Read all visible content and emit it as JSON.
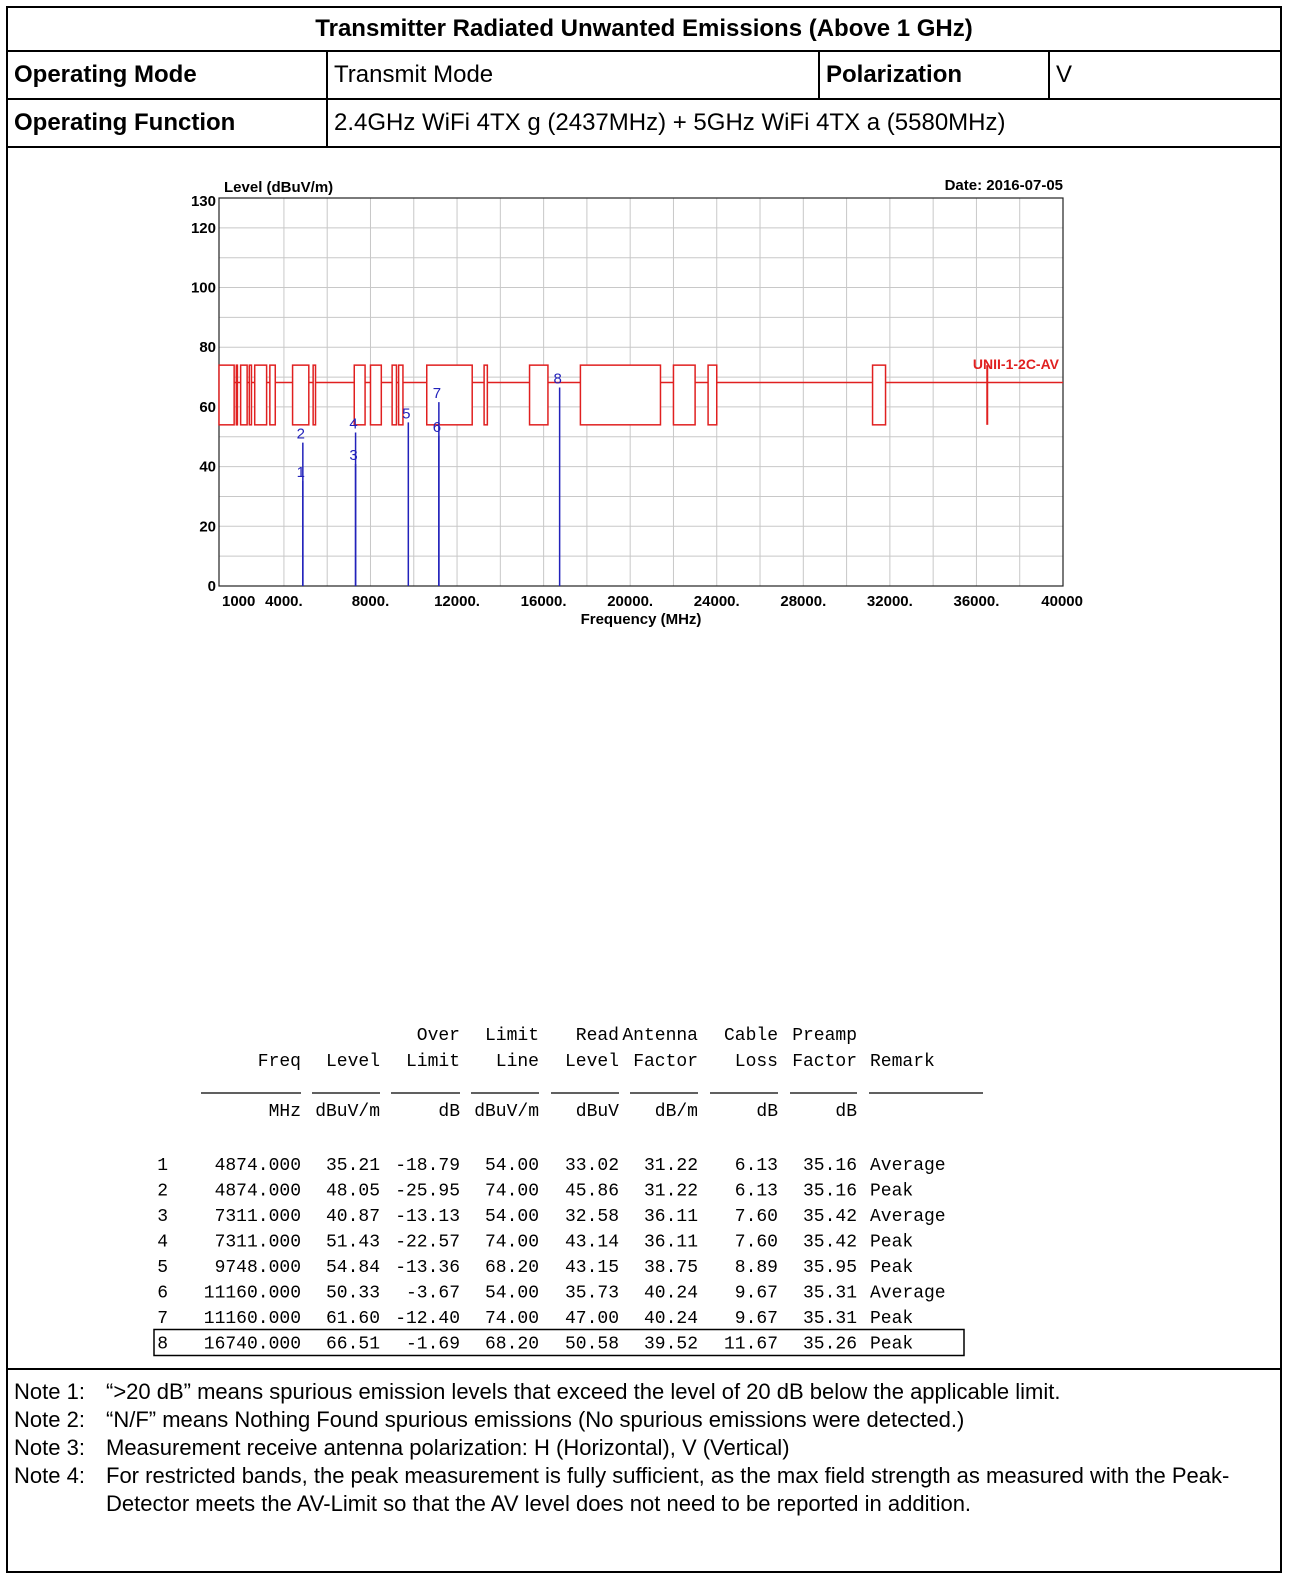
{
  "header": {
    "title": "Transmitter Radiated Unwanted Emissions (Above 1 GHz)",
    "operating_mode_label": "Operating Mode",
    "operating_mode_value": "Transmit Mode",
    "polarization_label": "Polarization",
    "polarization_value": "V",
    "operating_function_label": "Operating Function",
    "operating_function_value": "2.4GHz WiFi 4TX g (2437MHz) + 5GHz WiFi 4TX a (5580MHz)"
  },
  "chart_data": {
    "type": "line",
    "ylabel": "Level (dBuV/m)",
    "xlabel": "Frequency (MHz)",
    "date": "Date: 2016-07-05",
    "limit_label": "UNII-1-2C-AV",
    "xlim": [
      1000,
      40000
    ],
    "ylim": [
      0,
      130
    ],
    "x_ticks": [
      {
        "v": 1000,
        "label": "1000"
      },
      {
        "v": 4000,
        "label": "4000."
      },
      {
        "v": 8000,
        "label": "8000."
      },
      {
        "v": 12000,
        "label": "12000."
      },
      {
        "v": 16000,
        "label": "16000."
      },
      {
        "v": 20000,
        "label": "20000."
      },
      {
        "v": 24000,
        "label": "24000."
      },
      {
        "v": 28000,
        "label": "28000."
      },
      {
        "v": 32000,
        "label": "32000."
      },
      {
        "v": 36000,
        "label": "36000."
      },
      {
        "v": 40000,
        "label": "40000"
      }
    ],
    "y_ticks": [
      {
        "v": 0,
        "label": "0"
      },
      {
        "v": 20,
        "label": "20"
      },
      {
        "v": 40,
        "label": "40"
      },
      {
        "v": 60,
        "label": "60"
      },
      {
        "v": 80,
        "label": "80"
      },
      {
        "v": 100,
        "label": "100"
      },
      {
        "v": 120,
        "label": "120"
      },
      {
        "v": 130,
        "label": "130"
      }
    ],
    "limit_line_color": "#e02020",
    "marker_color": "#2222bb",
    "limit_boxes": [
      [
        1000,
        1700
      ],
      [
        1800,
        1850
      ],
      [
        2000,
        2300
      ],
      [
        2400,
        2500
      ],
      [
        2650,
        3200
      ],
      [
        3350,
        3600
      ],
      [
        4400,
        5150
      ],
      [
        5350,
        5460
      ],
      [
        7250,
        7750
      ],
      [
        8000,
        8500
      ],
      [
        9000,
        9200
      ],
      [
        9300,
        9500
      ],
      [
        10600,
        12700
      ],
      [
        13250,
        13400
      ],
      [
        15350,
        16200
      ],
      [
        17700,
        21400
      ],
      [
        22000,
        23000
      ],
      [
        23600,
        24000
      ],
      [
        31200,
        31800
      ]
    ],
    "limit_box_levels": [
      54,
      74
    ],
    "limit_line_level": 68.2,
    "limit_segment": {
      "x": 36500,
      "y1": 54,
      "y2": 74
    },
    "markers": [
      {
        "n": "1",
        "freq": 4874,
        "level": 35.21
      },
      {
        "n": "2",
        "freq": 4874,
        "level": 48.05
      },
      {
        "n": "3",
        "freq": 7311,
        "level": 40.87
      },
      {
        "n": "4",
        "freq": 7311,
        "level": 51.43
      },
      {
        "n": "5",
        "freq": 9748,
        "level": 54.84
      },
      {
        "n": "6",
        "freq": 11160,
        "level": 50.33
      },
      {
        "n": "7",
        "freq": 11160,
        "level": 61.6
      },
      {
        "n": "8",
        "freq": 16740,
        "level": 66.51
      }
    ]
  },
  "table": {
    "header_line1": [
      "",
      "",
      "",
      "Over",
      "Limit",
      "Read",
      "Antenna",
      "Cable",
      "Preamp",
      ""
    ],
    "header_line2": [
      "",
      "Freq",
      "Level",
      "Limit",
      "Line",
      "Level",
      "Factor",
      "Loss",
      "Factor",
      "Remark"
    ],
    "units": [
      "",
      "MHz",
      "dBuV/m",
      "dB",
      "dBuV/m",
      "dBuV",
      "dB/m",
      "dB",
      "dB",
      ""
    ],
    "rows": [
      [
        "1",
        "4874.000",
        "35.21",
        "-18.79",
        "54.00",
        "33.02",
        "31.22",
        "6.13",
        "35.16",
        "Average"
      ],
      [
        "2",
        "4874.000",
        "48.05",
        "-25.95",
        "74.00",
        "45.86",
        "31.22",
        "6.13",
        "35.16",
        "Peak"
      ],
      [
        "3",
        "7311.000",
        "40.87",
        "-13.13",
        "54.00",
        "32.58",
        "36.11",
        "7.60",
        "35.42",
        "Average"
      ],
      [
        "4",
        "7311.000",
        "51.43",
        "-22.57",
        "74.00",
        "43.14",
        "36.11",
        "7.60",
        "35.42",
        "Peak"
      ],
      [
        "5",
        "9748.000",
        "54.84",
        "-13.36",
        "68.20",
        "43.15",
        "38.75",
        "8.89",
        "35.95",
        "Peak"
      ],
      [
        "6",
        "11160.000",
        "50.33",
        "-3.67",
        "54.00",
        "35.73",
        "40.24",
        "9.67",
        "35.31",
        "Average"
      ],
      [
        "7",
        "11160.000",
        "61.60",
        "-12.40",
        "74.00",
        "47.00",
        "40.24",
        "9.67",
        "35.31",
        "Peak"
      ],
      [
        "8",
        "16740.000",
        "66.51",
        "-1.69",
        "68.20",
        "50.58",
        "39.52",
        "11.67",
        "35.26",
        "Peak"
      ]
    ],
    "highlighted_row": 8
  },
  "notes": [
    {
      "label": "Note 1:",
      "text": "“>20 dB” means spurious emission levels that exceed the level of 20 dB below the applicable limit."
    },
    {
      "label": "Note 2:",
      "text": "“N/F” means Nothing Found spurious emissions (No spurious emissions were detected.)"
    },
    {
      "label": "Note 3:",
      "text": "Measurement receive antenna polarization: H (Horizontal), V (Vertical)"
    },
    {
      "label": "Note 4:",
      "text": "For restricted bands, the peak measurement is fully sufficient, as the max field strength as measured with the Peak-Detector meets the AV-Limit so that the AV level does not need to be reported in addition."
    }
  ]
}
